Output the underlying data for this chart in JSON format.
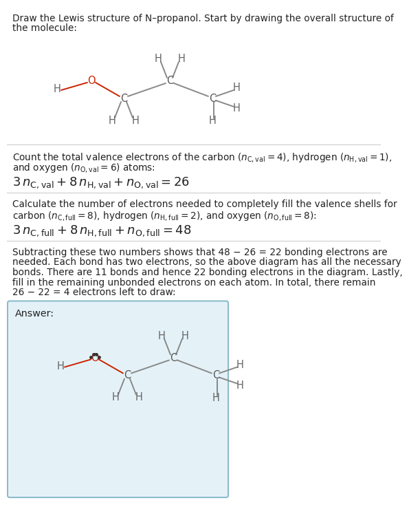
{
  "title_line1": "Draw the Lewis structure of N–propanol. Start by drawing the overall structure of",
  "title_line2": "the molecule:",
  "s1_line1": "Count the total valence electrons of the carbon ($n_{\\mathrm{C,val}}= 4$), hydrogen ($n_{\\mathrm{H,val}}= 1$),",
  "s1_line2": "and oxygen ($n_{\\mathrm{O,val}}= 6$) atoms:",
  "s1_formula": "$3\\,n_{\\mathrm{C,val}} + 8\\,n_{\\mathrm{H,val}} + n_{\\mathrm{O,val}} = 26$",
  "s2_line1": "Calculate the number of electrons needed to completely fill the valence shells for",
  "s2_line2": "carbon ($n_{\\mathrm{C,full}}= 8$), hydrogen ($n_{\\mathrm{H,full}}= 2$), and oxygen ($n_{\\mathrm{O,full}}= 8$):",
  "s2_formula": "$3\\,n_{\\mathrm{C,full}} + 8\\,n_{\\mathrm{H,full}} + n_{\\mathrm{O,full}} = 48$",
  "s3_line1": "Subtracting these two numbers shows that 48 − 26 = 22 bonding electrons are",
  "s3_line2": "needed. Each bond has two electrons, so the above diagram has all the necessary",
  "s3_line3": "bonds. There are 11 bonds and hence 22 bonding electrons in the diagram. Lastly,",
  "s3_line4": "fill in the remaining unbonded electrons on each atom. In total, there remain",
  "s3_line5": "26 − 22 = 4 electrons left to draw:",
  "answer_label": "Answer:",
  "bg_color": "#ffffff",
  "answer_bg_color": "#e4f2f8",
  "answer_border_color": "#8bbccc",
  "atom_C": "#555555",
  "atom_H": "#666666",
  "atom_O": "#cc2200",
  "bond_gray": "#888888",
  "bond_red": "#cc2200",
  "text_color": "#222222",
  "line_color": "#cccccc",
  "formula_fontsize": 13,
  "body_fontsize": 9.8
}
